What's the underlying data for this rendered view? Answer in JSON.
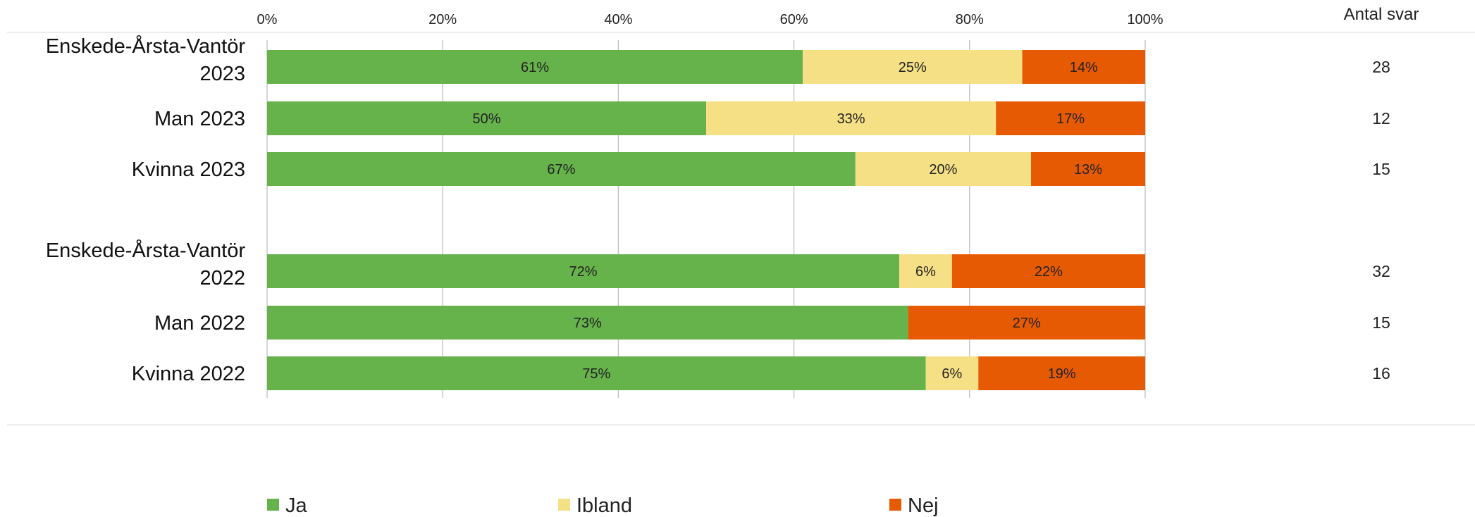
{
  "chart_data": {
    "type": "bar",
    "orientation": "horizontal",
    "stacked": true,
    "categories": [
      [
        "Enskede-Årsta-Vantör",
        "2023"
      ],
      [
        "Man 2023"
      ],
      [
        "Kvinna 2023"
      ],
      [
        "Enskede-Årsta-Vantör",
        "2022"
      ],
      [
        "Man 2022"
      ],
      [
        "Kvinna 2022"
      ]
    ],
    "group_gap_after_index": 2,
    "series": [
      {
        "name": "Ja",
        "color": "#66b24b",
        "values": [
          61,
          50,
          67,
          72,
          73,
          75
        ]
      },
      {
        "name": "Ibland",
        "color": "#f6e086",
        "values": [
          25,
          33,
          20,
          6,
          0,
          6
        ]
      },
      {
        "name": "Nej",
        "color": "#e75a04",
        "values": [
          14,
          17,
          13,
          22,
          27,
          19
        ]
      }
    ],
    "xlim": [
      0,
      100
    ],
    "xticks": [
      "0%",
      "20%",
      "40%",
      "60%",
      "80%",
      "100%"
    ],
    "value_suffix": "%",
    "grid": true,
    "legend": "bottom",
    "side_column": {
      "header": "Antal svar",
      "values": [
        "28",
        "12",
        "15",
        "32",
        "15",
        "16"
      ]
    }
  }
}
